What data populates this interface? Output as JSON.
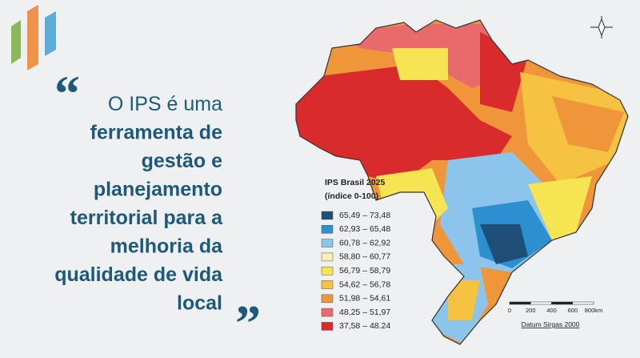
{
  "quote": {
    "open_mark": "“",
    "close_mark": "”",
    "lines": [
      "O IPS é uma",
      "ferramenta de",
      "gestão e",
      "planejamento",
      "territorial para a",
      "melhoria da",
      "qualidade de vida",
      "local"
    ]
  },
  "legend": {
    "title": [
      "IPS Brasil 2025",
      "(índice 0-100)"
    ],
    "items": [
      {
        "label": "65,49 – 73,48",
        "color": "#1f4e79"
      },
      {
        "label": "62,93 – 65,48",
        "color": "#2b8fd0"
      },
      {
        "label": "60,78 – 62,92",
        "color": "#8cc4ec"
      },
      {
        "label": "58,80 – 60,77",
        "color": "#f7f0b0"
      },
      {
        "label": "56,79 – 58,79",
        "color": "#f6e452"
      },
      {
        "label": "54,62 – 56,78",
        "color": "#f5c242"
      },
      {
        "label": "51,98 – 54,61",
        "color": "#f0963a"
      },
      {
        "label": "48,25 – 51,97",
        "color": "#e86a6a"
      },
      {
        "label": "37,58 – 48.24",
        "color": "#d92b2b"
      }
    ]
  },
  "scale_bar": {
    "ticks": [
      "0",
      "200",
      "400",
      "600",
      "800km"
    ],
    "datum": "Datum Sirgas 2000"
  }
}
